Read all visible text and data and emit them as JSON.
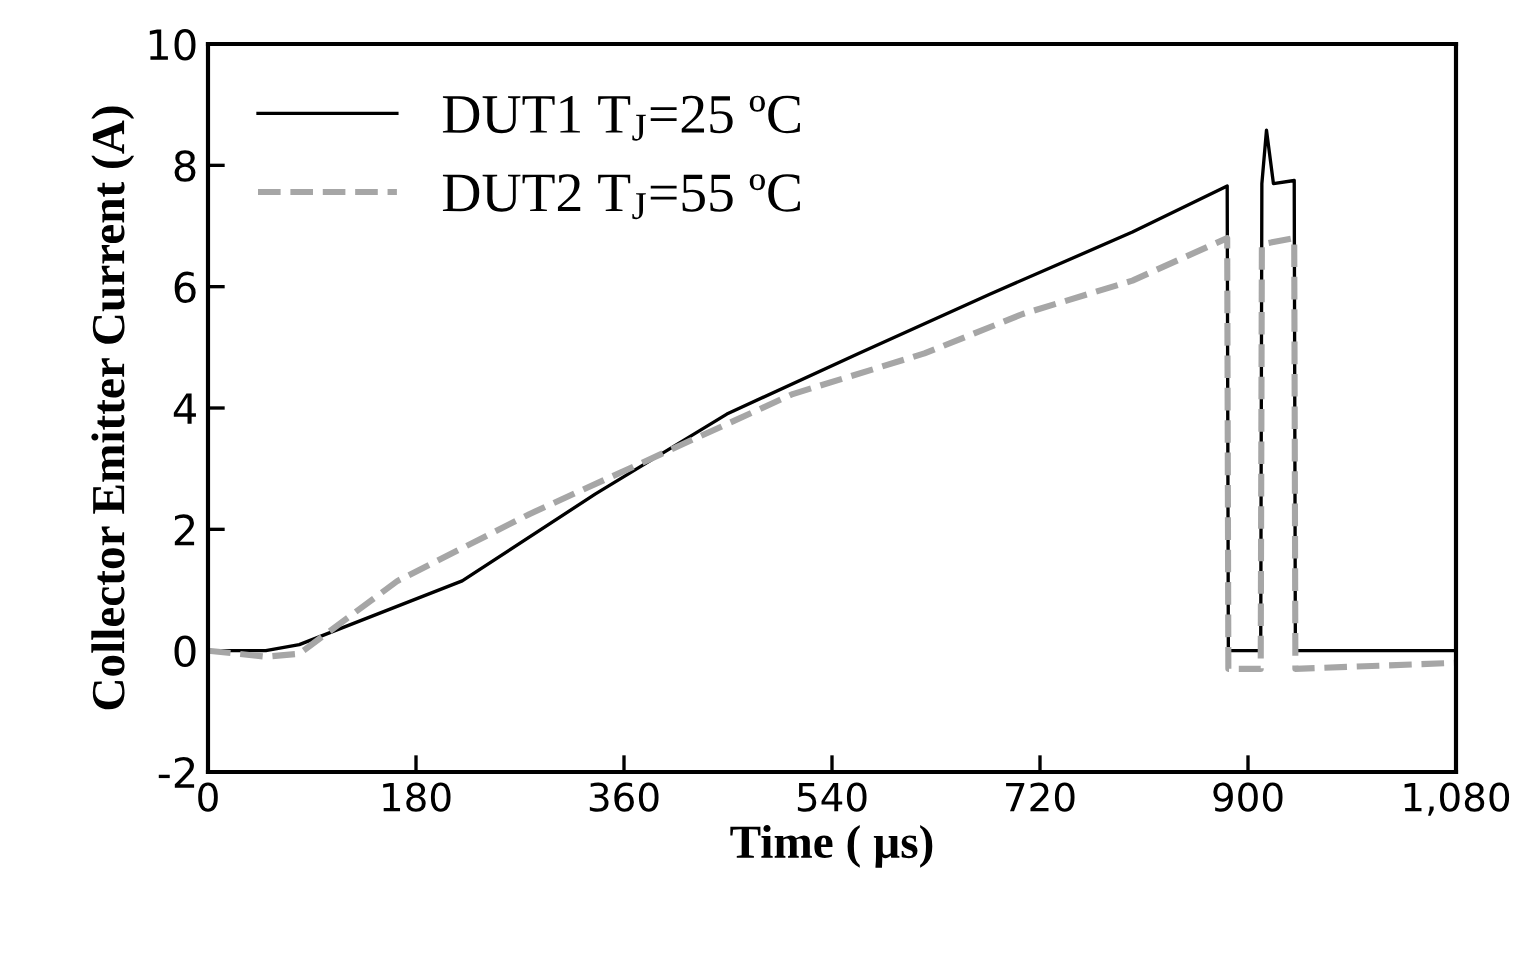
{
  "chart_data": {
    "type": "line",
    "xlabel": "Time ( µs)",
    "ylabel": "Collector Emitter Current (A)",
    "xlim": [
      0,
      1080
    ],
    "xticks": [
      0,
      180,
      360,
      540,
      720,
      900,
      {
        "value": 1080,
        "label": "1,080"
      }
    ],
    "ylim": [
      -2,
      10
    ],
    "yticks": [
      -2,
      0,
      2,
      4,
      6,
      8,
      10
    ],
    "grid": false,
    "legend": "top left",
    "series": [
      {
        "name": "DUT1 T$_{J}$=25 ºC",
        "color": "#000000",
        "line_style": "solid",
        "x": [
          0,
          50,
          79,
          220,
          335,
          449,
          563,
          677,
          800,
          882,
          883,
          911,
          912,
          916,
          922,
          940,
          941,
          1080
        ],
        "values": [
          0,
          0,
          0.1,
          1.15,
          2.58,
          3.9,
          4.9,
          5.88,
          6.9,
          7.66,
          0,
          0,
          7.7,
          8.58,
          7.7,
          7.75,
          0,
          0
        ]
      },
      {
        "name": "DUT2 T$_{J}$=55 ºC",
        "color": "#a6a6a6",
        "line_style": "dashed",
        "x": [
          0,
          50,
          79,
          164,
          278,
          392,
          506,
          620,
          705,
          800,
          882,
          883,
          911,
          912,
          940,
          941,
          1080
        ],
        "values": [
          0,
          -0.1,
          -0.05,
          1.15,
          2.25,
          3.24,
          4.23,
          4.9,
          5.55,
          6.1,
          6.8,
          -0.3,
          -0.3,
          6.7,
          6.8,
          -0.3,
          -0.2
        ]
      }
    ]
  }
}
